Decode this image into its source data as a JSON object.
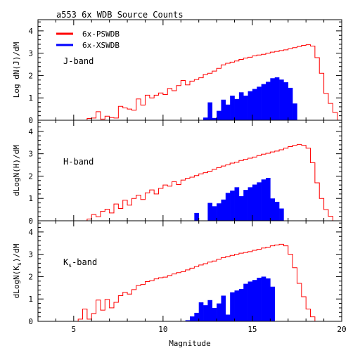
{
  "chart_data": {
    "title": "a553  6x WDB Source Counts",
    "xlabel": "Magnitude",
    "x_range": [
      3,
      20
    ],
    "x_ticks": [
      5,
      10,
      15,
      20
    ],
    "y_range": [
      0,
      4.5
    ],
    "y_ticks": [
      0,
      1,
      2,
      3,
      4
    ],
    "bin_width": 0.25,
    "legend": [
      {
        "name": "6x-PSWDB",
        "color": "#ff0000",
        "style": "line"
      },
      {
        "name": "6x-XSWDB",
        "color": "#0000ff",
        "style": "fill"
      }
    ],
    "panels": [
      {
        "type": "histogram",
        "band_label": "J-band",
        "ylabel": "Log dN(J)/dM",
        "series": [
          {
            "name": "6x-PSWDB",
            "color": "#ff0000",
            "x": [
              5.875,
              6.125,
              6.375,
              6.625,
              6.875,
              7.125,
              7.375,
              7.625,
              7.875,
              8.125,
              8.375,
              8.625,
              8.875,
              9.125,
              9.375,
              9.625,
              9.875,
              10.125,
              10.375,
              10.625,
              10.875,
              11.125,
              11.375,
              11.625,
              11.875,
              12.125,
              12.375,
              12.625,
              12.875,
              13.125,
              13.375,
              13.625,
              13.875,
              14.125,
              14.375,
              14.625,
              14.875,
              15.125,
              15.375,
              15.625,
              15.875,
              16.125,
              16.375,
              16.625,
              16.875,
              17.125,
              17.375,
              17.625,
              17.875,
              18.125,
              18.375,
              18.625,
              18.875,
              19.125,
              19.375,
              19.625,
              19.875
            ],
            "values": [
              0.08,
              0.1,
              0.38,
              0.05,
              0.18,
              0.12,
              0.1,
              0.62,
              0.55,
              0.5,
              0.45,
              0.95,
              0.68,
              1.12,
              1.0,
              1.12,
              1.22,
              1.15,
              1.42,
              1.32,
              1.55,
              1.78,
              1.58,
              1.75,
              1.82,
              1.9,
              2.05,
              2.1,
              2.2,
              2.32,
              2.48,
              2.55,
              2.6,
              2.65,
              2.72,
              2.78,
              2.82,
              2.88,
              2.92,
              2.95,
              3.0,
              3.05,
              3.08,
              3.12,
              3.15,
              3.2,
              3.25,
              3.3,
              3.35,
              3.38,
              3.32,
              2.8,
              2.1,
              1.2,
              0.75,
              0.35,
              0.0
            ]
          },
          {
            "name": "6x-XSWDB",
            "color": "#0000ff",
            "x": [
              12.375,
              12.625,
              12.875,
              13.125,
              13.375,
              13.625,
              13.875,
              14.125,
              14.375,
              14.625,
              14.875,
              15.125,
              15.375,
              15.625,
              15.875,
              16.125,
              16.375,
              16.625,
              16.875,
              17.125,
              17.375
            ],
            "values": [
              0.12,
              0.8,
              0.1,
              0.42,
              0.92,
              0.7,
              1.1,
              0.95,
              1.25,
              1.1,
              1.3,
              1.4,
              1.5,
              1.62,
              1.72,
              1.88,
              1.92,
              1.82,
              1.7,
              1.45,
              0.75
            ]
          }
        ]
      },
      {
        "type": "histogram",
        "band_label": "H-band",
        "ylabel": "dLogN(H)/dM",
        "series": [
          {
            "name": "6x-PSWDB",
            "color": "#ff0000",
            "x": [
              5.875,
              6.125,
              6.375,
              6.625,
              6.875,
              7.125,
              7.375,
              7.625,
              7.875,
              8.125,
              8.375,
              8.625,
              8.875,
              9.125,
              9.375,
              9.625,
              9.875,
              10.125,
              10.375,
              10.625,
              10.875,
              11.125,
              11.375,
              11.625,
              11.875,
              12.125,
              12.375,
              12.625,
              12.875,
              13.125,
              13.375,
              13.625,
              13.875,
              14.125,
              14.375,
              14.625,
              14.875,
              15.125,
              15.375,
              15.625,
              15.875,
              16.125,
              16.375,
              16.625,
              16.875,
              17.125,
              17.375,
              17.625,
              17.875,
              18.125,
              18.375,
              18.625,
              18.875,
              19.125,
              19.375,
              19.625,
              19.875
            ],
            "values": [
              0.08,
              0.28,
              0.18,
              0.42,
              0.52,
              0.35,
              0.75,
              0.55,
              0.92,
              0.7,
              1.0,
              1.15,
              0.95,
              1.25,
              1.38,
              1.2,
              1.45,
              1.6,
              1.55,
              1.75,
              1.62,
              1.82,
              1.9,
              1.95,
              2.02,
              2.1,
              2.15,
              2.22,
              2.3,
              2.38,
              2.45,
              2.5,
              2.58,
              2.62,
              2.7,
              2.75,
              2.8,
              2.85,
              2.92,
              2.98,
              3.02,
              3.08,
              3.12,
              3.18,
              3.25,
              3.32,
              3.38,
              3.42,
              3.38,
              3.25,
              2.6,
              1.7,
              1.0,
              0.5,
              0.2,
              0.0,
              0.0
            ]
          },
          {
            "name": "6x-XSWDB",
            "color": "#0000ff",
            "x": [
              11.875,
              12.125,
              12.375,
              12.625,
              12.875,
              13.125,
              13.375,
              13.625,
              13.875,
              14.125,
              14.375,
              14.625,
              14.875,
              15.125,
              15.375,
              15.625,
              15.875,
              16.125,
              16.375,
              16.625,
              16.875
            ],
            "values": [
              0.35,
              0.0,
              0.0,
              0.8,
              0.65,
              0.78,
              0.95,
              1.25,
              1.35,
              1.5,
              1.1,
              1.38,
              1.5,
              1.62,
              1.72,
              1.85,
              1.92,
              1.0,
              0.85,
              0.55,
              0.0
            ]
          }
        ]
      },
      {
        "type": "histogram",
        "band_label": "Ks-band",
        "ylabel": "dLogN(Ks)/dM",
        "series": [
          {
            "name": "6x-PSWDB",
            "color": "#ff0000",
            "x": [
              5.375,
              5.625,
              5.875,
              6.125,
              6.375,
              6.625,
              6.875,
              7.125,
              7.375,
              7.625,
              7.875,
              8.125,
              8.375,
              8.625,
              8.875,
              9.125,
              9.375,
              9.625,
              9.875,
              10.125,
              10.375,
              10.625,
              10.875,
              11.125,
              11.375,
              11.625,
              11.875,
              12.125,
              12.375,
              12.625,
              12.875,
              13.125,
              13.375,
              13.625,
              13.875,
              14.125,
              14.375,
              14.625,
              14.875,
              15.125,
              15.375,
              15.625,
              15.875,
              16.125,
              16.375,
              16.625,
              16.875,
              17.125,
              17.375,
              17.625,
              17.875,
              18.125,
              18.375,
              18.625,
              18.875
            ],
            "values": [
              0.1,
              0.55,
              0.1,
              0.35,
              0.95,
              0.5,
              0.98,
              0.6,
              0.85,
              1.15,
              1.3,
              1.22,
              1.42,
              1.6,
              1.65,
              1.78,
              1.82,
              1.9,
              1.95,
              1.98,
              2.05,
              2.12,
              2.18,
              2.22,
              2.3,
              2.38,
              2.45,
              2.52,
              2.58,
              2.65,
              2.7,
              2.78,
              2.85,
              2.9,
              2.95,
              3.0,
              3.05,
              3.08,
              3.12,
              3.18,
              3.22,
              3.28,
              3.32,
              3.38,
              3.42,
              3.45,
              3.38,
              3.0,
              2.4,
              1.7,
              1.1,
              0.55,
              0.2,
              0.0,
              0.0
            ]
          },
          {
            "name": "6x-XSWDB",
            "color": "#0000ff",
            "x": [
              11.375,
              11.625,
              11.875,
              12.125,
              12.375,
              12.625,
              12.875,
              13.125,
              13.375,
              13.625,
              13.875,
              14.125,
              14.375,
              14.625,
              14.875,
              15.125,
              15.375,
              15.625,
              15.875,
              16.125
            ],
            "values": [
              0.05,
              0.22,
              0.38,
              0.85,
              0.72,
              0.95,
              0.6,
              0.8,
              1.15,
              0.3,
              1.3,
              1.38,
              1.45,
              1.68,
              1.78,
              1.85,
              1.95,
              2.0,
              1.92,
              1.55
            ]
          }
        ]
      }
    ]
  }
}
